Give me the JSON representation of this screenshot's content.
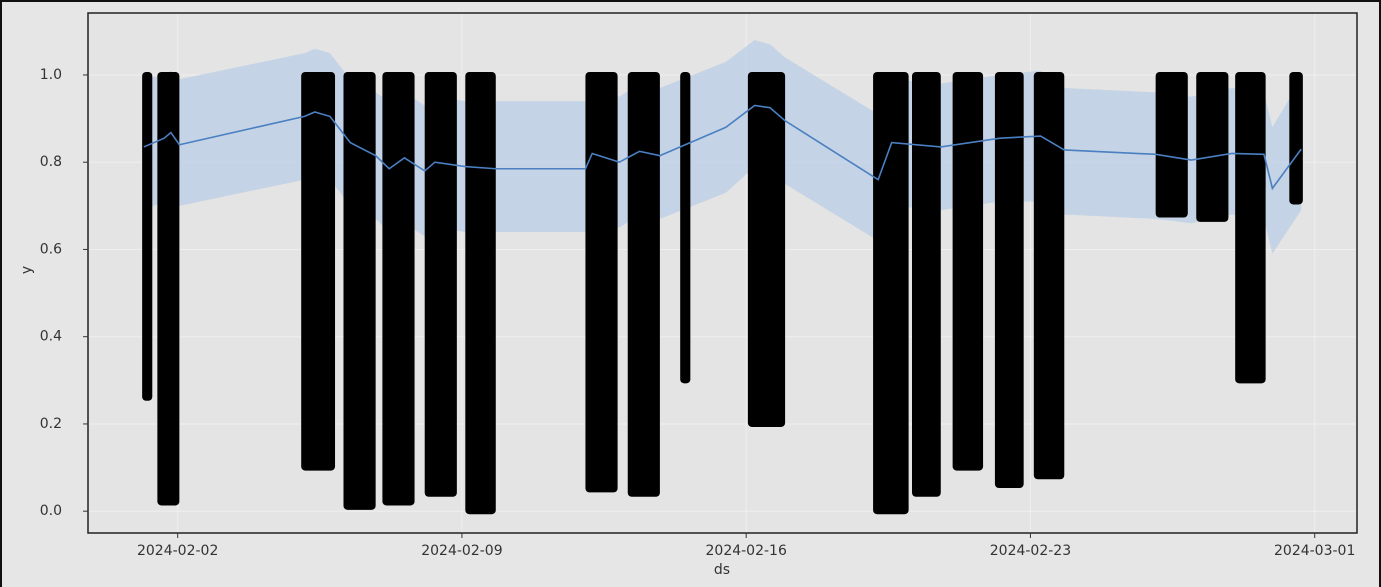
{
  "chart_data": {
    "type": "line",
    "xlabel": "ds",
    "ylabel": "y",
    "xlim": [
      "2024-01-30T19:00",
      "2024-03-02T01:00"
    ],
    "xticks": [
      "2024-02-02",
      "2024-02-09",
      "2024-02-16",
      "2024-02-23",
      "2024-03-01"
    ],
    "ylim": [
      -0.05,
      1.142
    ],
    "yticks": [
      {
        "value": 0,
        "label": "0.0"
      },
      0.2,
      0.4,
      0.6,
      0.8,
      {
        "value": 1,
        "label": "1.0"
      }
    ],
    "grid": true,
    "observations": {
      "color": "#000000",
      "x_start": [
        "2024-02-01T03:00",
        "2024-02-01T12:00",
        "2024-02-05T01:00",
        "2024-02-06T02:00",
        "2024-02-07T01:00",
        "2024-02-08T02:00",
        "2024-02-09T02:00",
        "2024-02-12T01:00",
        "2024-02-13T02:00",
        "2024-02-14T09:00",
        "2024-02-16T01:00",
        "2024-02-19T03:00",
        "2024-02-20T02:00",
        "2024-02-21T02:00",
        "2024-02-22T03:00",
        "2024-02-23T02:00",
        "2024-02-26T02:00",
        "2024-02-27T02:00",
        "2024-02-28T01:00",
        "2024-02-29T09:00"
      ],
      "x_end": [
        "2024-02-01T09:00",
        "2024-02-02T01:00",
        "2024-02-05T21:00",
        "2024-02-06T21:00",
        "2024-02-07T20:00",
        "2024-02-08T21:00",
        "2024-02-09T20:00",
        "2024-02-12T20:00",
        "2024-02-13T21:00",
        "2024-02-14T15:00",
        "2024-02-16T23:00",
        "2024-02-20T00:00",
        "2024-02-20T19:00",
        "2024-02-21T20:00",
        "2024-02-22T20:00",
        "2024-02-23T20:00",
        "2024-02-26T21:00",
        "2024-02-27T21:00",
        "2024-02-28T19:00",
        "2024-02-29T17:00"
      ],
      "low": [
        0.26,
        0.02,
        0.1,
        0.01,
        0.02,
        0.04,
        0.0,
        0.05,
        0.04,
        0.3,
        0.2,
        0.0,
        0.04,
        0.1,
        0.06,
        0.08,
        0.68,
        0.67,
        0.3,
        0.71
      ],
      "high": [
        1.0,
        1.0,
        1.0,
        1.0,
        1.0,
        1.0,
        1.0,
        1.0,
        1.0,
        1.0,
        1.0,
        1.0,
        1.0,
        1.0,
        1.0,
        1.0,
        1.0,
        1.0,
        1.0,
        1.0
      ]
    },
    "forecast": {
      "color": "#4a7fc1",
      "band_color": "#b9cde6",
      "x": [
        "2024-02-01T04:00",
        "2024-02-01T16:00",
        "2024-02-01T20:00",
        "2024-02-02T01:00",
        "2024-02-05T03:00",
        "2024-02-05T09:00",
        "2024-02-05T18:00",
        "2024-02-06T06:00",
        "2024-02-06T21:00",
        "2024-02-07T05:00",
        "2024-02-07T14:00",
        "2024-02-08T02:00",
        "2024-02-08T08:00",
        "2024-02-09T02:00",
        "2024-02-09T20:00",
        "2024-02-12T01:00",
        "2024-02-12T05:00",
        "2024-02-12T21:00",
        "2024-02-13T09:00",
        "2024-02-13T21:00",
        "2024-02-15T12:00",
        "2024-02-16T05:00",
        "2024-02-16T14:00",
        "2024-02-16T23:00",
        "2024-02-19T06:00",
        "2024-02-19T14:00",
        "2024-02-20T19:00",
        "2024-02-22T06:00",
        "2024-02-23T06:00",
        "2024-02-23T20:00",
        "2024-02-26T02:00",
        "2024-02-26T23:00",
        "2024-02-27T23:00",
        "2024-02-28T18:00",
        "2024-02-28T23:00",
        "2024-02-29T16:00"
      ],
      "values": [
        0.835,
        0.855,
        0.868,
        0.84,
        0.905,
        0.915,
        0.905,
        0.845,
        0.815,
        0.785,
        0.81,
        0.78,
        0.8,
        0.79,
        0.785,
        0.785,
        0.82,
        0.8,
        0.825,
        0.815,
        0.88,
        0.93,
        0.925,
        0.895,
        0.76,
        0.845,
        0.835,
        0.855,
        0.86,
        0.828,
        0.818,
        0.805,
        0.82,
        0.818,
        0.74,
        0.83
      ],
      "upper": [
        0.99,
        1.0,
        1.01,
        0.99,
        1.05,
        1.06,
        1.05,
        0.99,
        0.96,
        0.94,
        0.96,
        0.93,
        0.95,
        0.94,
        0.94,
        0.94,
        0.97,
        0.95,
        0.98,
        0.97,
        1.03,
        1.08,
        1.07,
        1.04,
        0.91,
        0.99,
        0.98,
        1.0,
        1.01,
        0.97,
        0.96,
        0.95,
        0.97,
        0.96,
        0.88,
        0.99
      ],
      "lower": [
        0.69,
        0.71,
        0.72,
        0.7,
        0.76,
        0.77,
        0.76,
        0.7,
        0.67,
        0.64,
        0.66,
        0.63,
        0.65,
        0.64,
        0.64,
        0.64,
        0.67,
        0.65,
        0.68,
        0.67,
        0.73,
        0.79,
        0.78,
        0.75,
        0.62,
        0.7,
        0.69,
        0.71,
        0.71,
        0.68,
        0.67,
        0.66,
        0.68,
        0.67,
        0.59,
        0.69
      ]
    }
  }
}
